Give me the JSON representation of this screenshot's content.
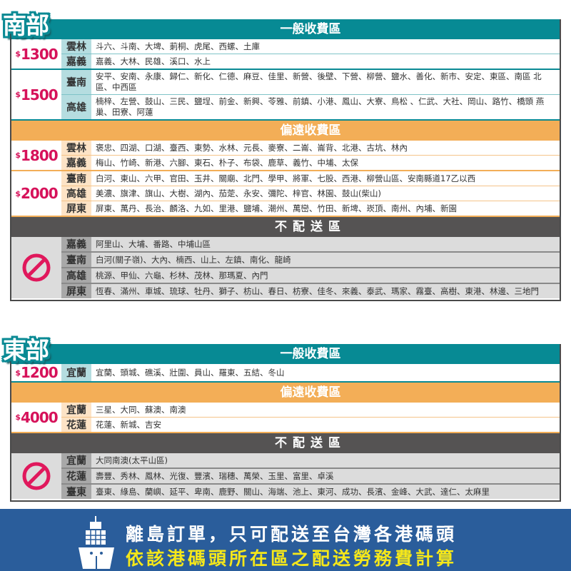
{
  "colors": {
    "general": "#078a94",
    "remote": "#f3ae57",
    "none": "#555353",
    "price": "#d6125a",
    "footer": "#2a5d9b",
    "footer_highlight": "#f5e71a"
  },
  "sections": [
    {
      "tag": "南部",
      "top": 27,
      "blocks": [
        {
          "type": "general",
          "title": "一般收費區",
          "groups": [
            {
              "price": "1300",
              "rowh": 23,
              "rows": [
                {
                  "region": "雲林",
                  "areas": "斗六、斗南、大埤、莿桐、虎尾、西螺、土庫"
                },
                {
                  "region": "嘉義",
                  "areas": "嘉義、大林、民雄、溪口、水上"
                }
              ]
            },
            {
              "price": "1500",
              "rowh": 42,
              "rows": [
                {
                  "region": "臺南",
                  "areas": "安平、安南、永康、歸仁、新化、仁德、麻豆、佳里、新營、後壁、下營、柳營、鹽水、善化、新市、安定、東區、南區 北區、中西區"
                },
                {
                  "region": "高雄",
                  "areas": "楠梓、左營、鼓山、三民、鹽埕、前金、新興、苓雅、前鎮、小港、鳳山、大寮、鳥松 、仁武、大社、岡山、路竹、橋頭 燕巢、田寮、阿蓮"
                }
              ]
            }
          ]
        },
        {
          "type": "remote",
          "title": "偏遠收費區",
          "groups": [
            {
              "price": "1800",
              "rowh": 24,
              "rows": [
                {
                  "region": "雲林",
                  "areas": "褒忠、四湖、口湖、臺西、東勢、水林、元長、麥寮、二崙、崙背、北港、古坑、林內"
                },
                {
                  "region": "嘉義",
                  "areas": "梅山、竹崎、新港、六腳、東石、朴子、布袋、鹿草、義竹、中埔、太保"
                }
              ]
            },
            {
              "price": "2000",
              "rowh": 24,
              "rows": [
                {
                  "region": "臺南",
                  "areas": "白河、東山、六甲、官田、玉井、關廟、北門、學甲、將軍、七股、西港、柳營山區、安南縣道17乙以西"
                },
                {
                  "region": "高雄",
                  "areas": "美濃、旗津、旗山、大樹、湖內、茄萣、永安、彌陀、梓官、林園、鼓山(柴山)"
                },
                {
                  "region": "屏東",
                  "areas": "屏東、萬丹、長治、麟洛、九如、里港、鹽埔、潮州、萬巒、竹田、新埤、崁頂、南州、內埔、新園"
                }
              ]
            }
          ]
        },
        {
          "type": "none",
          "title": "不配送區",
          "groups": [
            {
              "price": "",
              "rowh": 24,
              "rows": [
                {
                  "region": "嘉義",
                  "areas": "阿里山、大埔、番路、中埔山區"
                },
                {
                  "region": "臺南",
                  "areas": "白河(關子嶺)、大內、楠西、山上、左鎮、南化、龍崎"
                },
                {
                  "region": "高雄",
                  "areas": "桃源、甲仙、六龜、杉林、茂林、那瑪夏、內門"
                },
                {
                  "region": "屏東",
                  "areas": "恆春、滿州、車城、琉球、牡丹、獅子、枋山、春日、枋寮、佳冬、來義、泰武、瑪家、霧臺、高樹、東港、林邊、三地門"
                }
              ]
            }
          ]
        }
      ]
    },
    {
      "tag": "東部",
      "top": 482,
      "blocks": [
        {
          "type": "general",
          "title": "一般收費區",
          "groups": [
            {
              "price": "1200",
              "rowh": 24,
              "rows": [
                {
                  "region": "宜蘭",
                  "areas": "宜蘭、頭城、礁溪、壯圍、員山、羅東、五結、冬山"
                }
              ]
            }
          ]
        },
        {
          "type": "remote",
          "title": "偏遠收費區",
          "groups": [
            {
              "price": "4000",
              "rowh": 25,
              "rows": [
                {
                  "region": "宜蘭",
                  "areas": "三星、大同、蘇澳、南澳"
                },
                {
                  "region": "花蓮",
                  "areas": "花蓮、新城、吉安"
                }
              ]
            }
          ]
        },
        {
          "type": "none",
          "title": "不配送區",
          "groups": [
            {
              "price": "",
              "rowh": 24,
              "rows": [
                {
                  "region": "宜蘭",
                  "areas": "大同南澳(太平山區)"
                },
                {
                  "region": "花蓮",
                  "areas": "壽豐、秀林、鳳林、光復、豐濱、瑞穗、萬榮、玉里、富里、卓溪"
                },
                {
                  "region": "臺東",
                  "areas": "臺東、綠島、蘭嶼、延平、卑南、鹿野、關山、海端、池上、東河、成功、長濱、金峰、大武、達仁、太麻里"
                }
              ]
            }
          ]
        }
      ]
    }
  ],
  "currency_symbol": "$",
  "no_delivery_icon": "prohibited-icon",
  "footer": {
    "icon": "ship-icon",
    "line1": "離島訂單，只可配送至台灣各港碼頭",
    "line2": "依該港碼頭所在區之配送勞務費計算"
  }
}
